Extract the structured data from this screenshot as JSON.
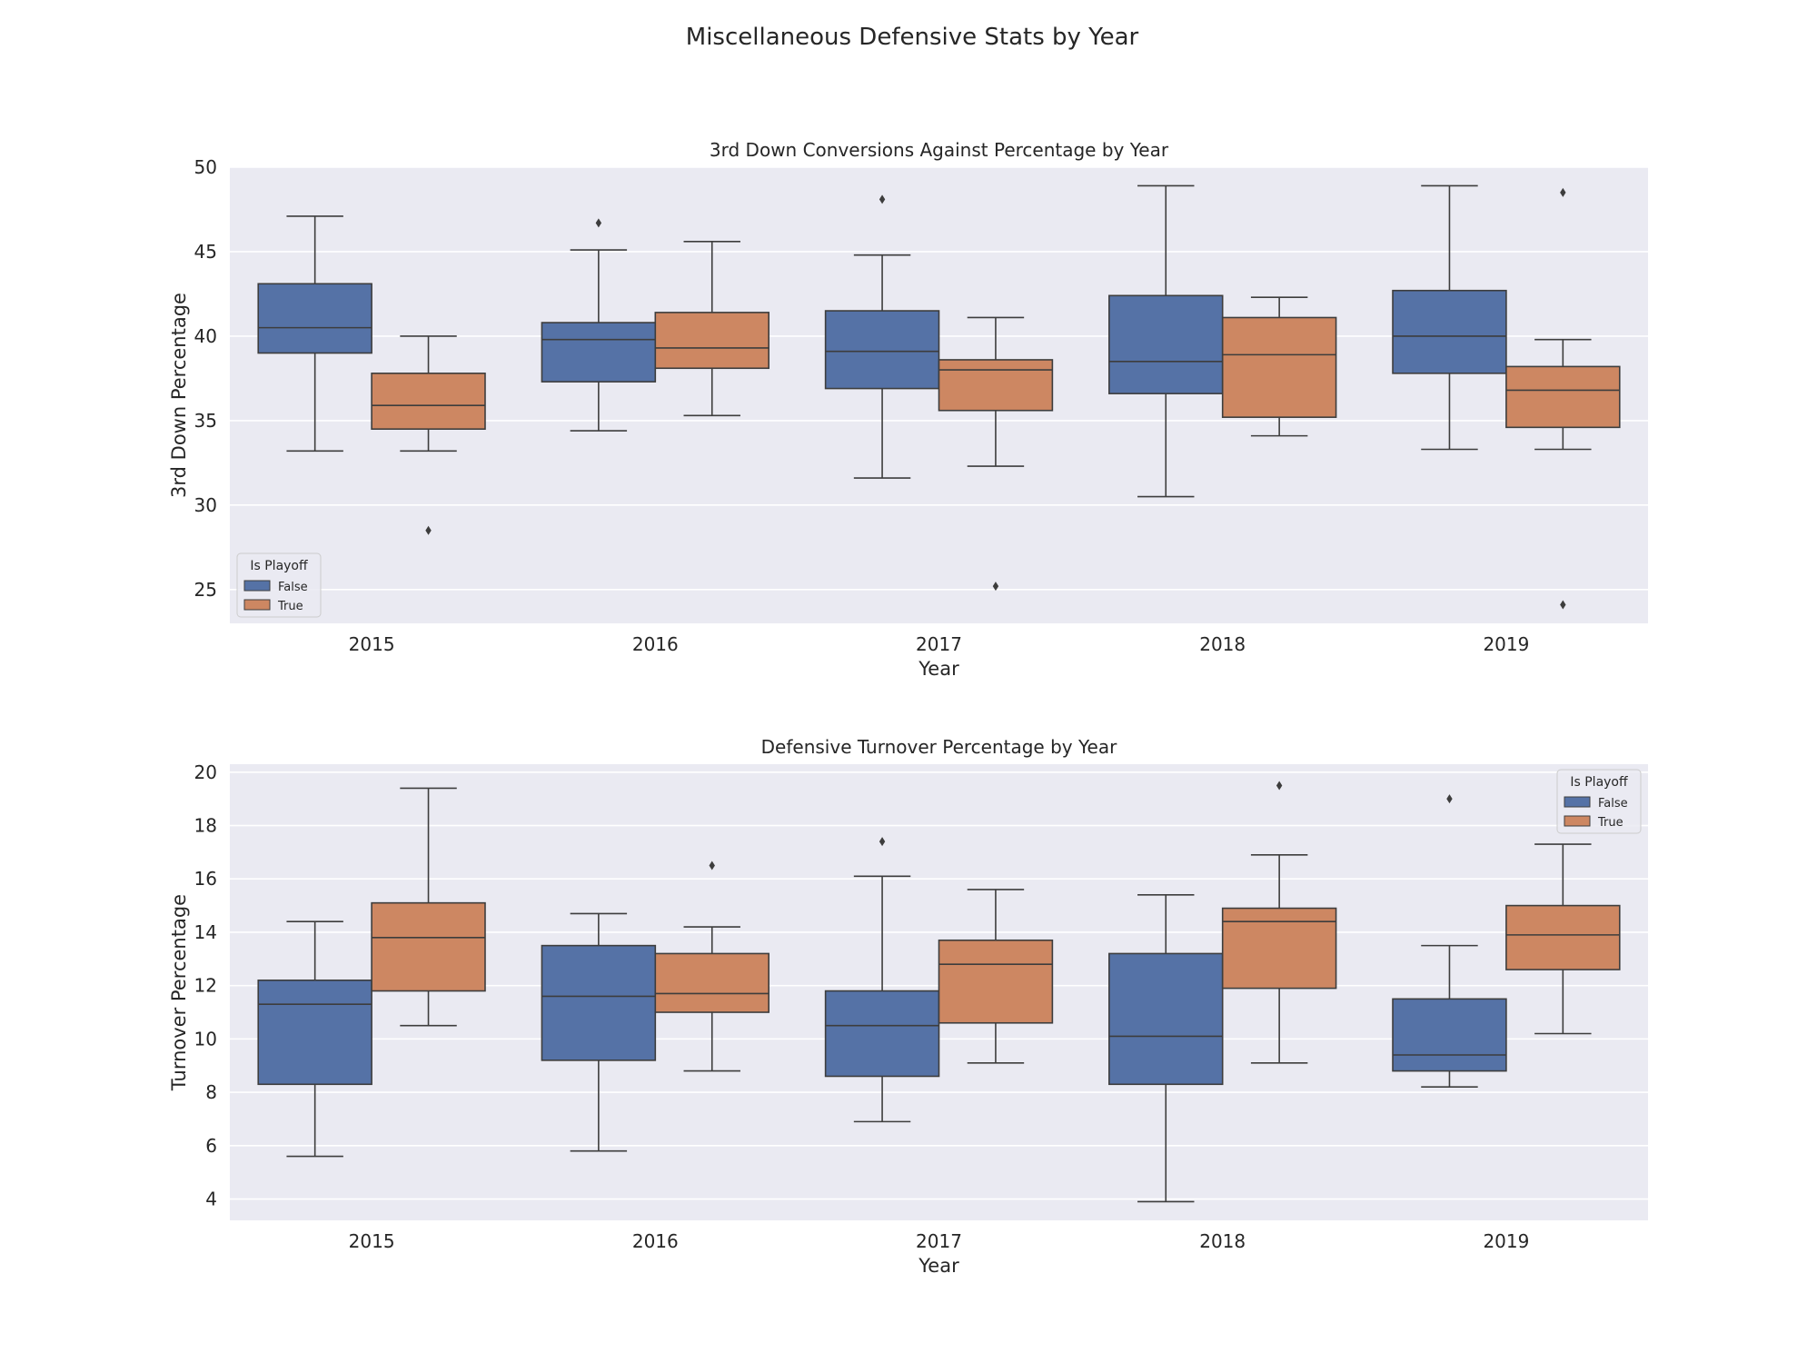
{
  "figure": {
    "suptitle": "Miscellaneous Defensive Stats by Year"
  },
  "colors": {
    "background": "#eaeaf2",
    "grid": "#ffffff",
    "false_box": "#5572a6",
    "true_box": "#cd8762",
    "line": "#3d3d3d"
  },
  "legend": {
    "title": "Is Playoff",
    "entries": [
      "False",
      "True"
    ]
  },
  "chart_data": [
    {
      "type": "box",
      "title": "3rd Down Conversions Against Percentage by Year",
      "xlabel": "Year",
      "ylabel": "3rd Down Percentage",
      "categories": [
        "2015",
        "2016",
        "2017",
        "2018",
        "2019"
      ],
      "ylim": [
        23,
        50
      ],
      "yticks": [
        25,
        30,
        35,
        40,
        45,
        50
      ],
      "grid": true,
      "legend_position": "lower-left",
      "series": [
        {
          "name": "False",
          "boxes": [
            {
              "whislo": 33.2,
              "q1": 39.0,
              "med": 40.5,
              "q3": 43.1,
              "whishi": 47.1,
              "fliers": []
            },
            {
              "whislo": 34.4,
              "q1": 37.3,
              "med": 39.8,
              "q3": 40.8,
              "whishi": 45.1,
              "fliers": [
                46.7
              ]
            },
            {
              "whislo": 31.6,
              "q1": 36.9,
              "med": 39.1,
              "q3": 41.5,
              "whishi": 44.8,
              "fliers": [
                48.1
              ]
            },
            {
              "whislo": 30.5,
              "q1": 36.6,
              "med": 38.5,
              "q3": 42.4,
              "whishi": 48.9,
              "fliers": []
            },
            {
              "whislo": 33.3,
              "q1": 37.8,
              "med": 40.0,
              "q3": 42.7,
              "whishi": 48.9,
              "fliers": []
            }
          ]
        },
        {
          "name": "True",
          "boxes": [
            {
              "whislo": 33.2,
              "q1": 34.5,
              "med": 35.9,
              "q3": 37.8,
              "whishi": 40.0,
              "fliers": [
                28.5
              ]
            },
            {
              "whislo": 35.3,
              "q1": 38.1,
              "med": 39.3,
              "q3": 41.4,
              "whishi": 45.6,
              "fliers": []
            },
            {
              "whislo": 32.3,
              "q1": 35.6,
              "med": 38.0,
              "q3": 38.6,
              "whishi": 41.1,
              "fliers": [
                25.2
              ]
            },
            {
              "whislo": 34.1,
              "q1": 35.2,
              "med": 38.9,
              "q3": 41.1,
              "whishi": 42.3,
              "fliers": []
            },
            {
              "whislo": 33.3,
              "q1": 34.6,
              "med": 36.8,
              "q3": 38.2,
              "whishi": 39.8,
              "fliers": [
                48.5,
                24.1
              ]
            }
          ]
        }
      ]
    },
    {
      "type": "box",
      "title": "Defensive Turnover Percentage by Year",
      "xlabel": "Year",
      "ylabel": "Turnover Percentage",
      "categories": [
        "2015",
        "2016",
        "2017",
        "2018",
        "2019"
      ],
      "ylim": [
        3.2,
        20.3
      ],
      "yticks": [
        4,
        6,
        8,
        10,
        12,
        14,
        16,
        18,
        20
      ],
      "grid": true,
      "legend_position": "upper-right",
      "series": [
        {
          "name": "False",
          "boxes": [
            {
              "whislo": 5.6,
              "q1": 8.3,
              "med": 11.3,
              "q3": 12.2,
              "whishi": 14.4,
              "fliers": []
            },
            {
              "whislo": 5.8,
              "q1": 9.2,
              "med": 11.6,
              "q3": 13.5,
              "whishi": 14.7,
              "fliers": []
            },
            {
              "whislo": 6.9,
              "q1": 8.6,
              "med": 10.5,
              "q3": 11.8,
              "whishi": 16.1,
              "fliers": [
                17.4
              ]
            },
            {
              "whislo": 3.9,
              "q1": 8.3,
              "med": 10.1,
              "q3": 13.2,
              "whishi": 15.4,
              "fliers": []
            },
            {
              "whislo": 8.2,
              "q1": 8.8,
              "med": 9.4,
              "q3": 11.5,
              "whishi": 13.5,
              "fliers": [
                19.0
              ]
            }
          ]
        },
        {
          "name": "True",
          "boxes": [
            {
              "whislo": 10.5,
              "q1": 11.8,
              "med": 13.8,
              "q3": 15.1,
              "whishi": 19.4,
              "fliers": []
            },
            {
              "whislo": 8.8,
              "q1": 11.0,
              "med": 11.7,
              "q3": 13.2,
              "whishi": 14.2,
              "fliers": [
                16.5
              ]
            },
            {
              "whislo": 9.1,
              "q1": 10.6,
              "med": 12.8,
              "q3": 13.7,
              "whishi": 15.6,
              "fliers": []
            },
            {
              "whislo": 9.1,
              "q1": 11.9,
              "med": 14.4,
              "q3": 14.9,
              "whishi": 16.9,
              "fliers": [
                19.5
              ]
            },
            {
              "whislo": 10.2,
              "q1": 12.6,
              "med": 13.9,
              "q3": 15.0,
              "whishi": 17.3,
              "fliers": []
            }
          ]
        }
      ]
    }
  ]
}
